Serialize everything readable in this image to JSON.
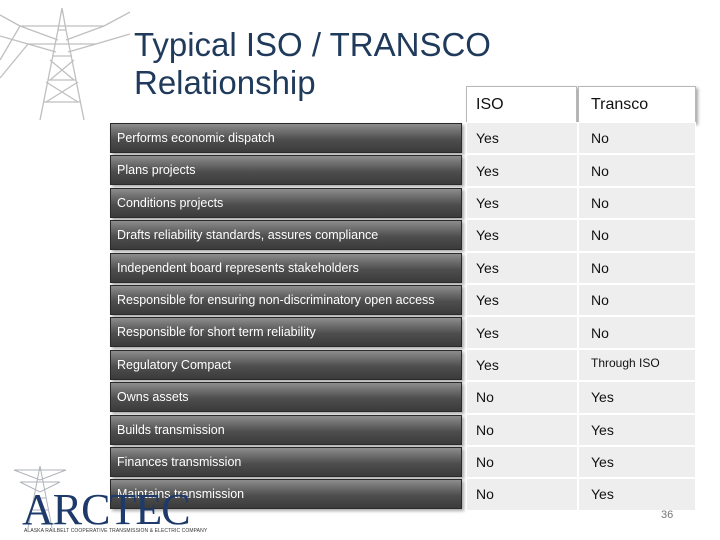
{
  "slide": {
    "title_line1": "Typical ISO / TRANSCO",
    "title_line2": "Relationship",
    "page_number": "36"
  },
  "logo": {
    "text": "ARCTEC",
    "tagline": "ALASKA RAILBELT COOPERATIVE TRANSMISSION & ELECTRIC COMPANY"
  },
  "table": {
    "headers": {
      "iso": "ISO",
      "transco": "Transco"
    },
    "rows": [
      {
        "label": "Performs economic dispatch",
        "iso": "Yes",
        "transco": "No"
      },
      {
        "label": "Plans projects",
        "iso": "Yes",
        "transco": "No"
      },
      {
        "label": "Conditions projects",
        "iso": "Yes",
        "transco": "No"
      },
      {
        "label": "Drafts reliability standards, assures compliance",
        "iso": "Yes",
        "transco": "No"
      },
      {
        "label": "Independent board represents stakeholders",
        "iso": "Yes",
        "transco": "No"
      },
      {
        "label": "Responsible for ensuring non-discriminatory open access",
        "iso": "Yes",
        "transco": "No"
      },
      {
        "label": "Responsible for short term reliability",
        "iso": "Yes",
        "transco": "No"
      },
      {
        "label": "Regulatory Compact",
        "iso": "Yes",
        "transco": "Through ISO"
      },
      {
        "label": "Owns assets",
        "iso": "No",
        "transco": "Yes"
      },
      {
        "label": "Builds transmission",
        "iso": "No",
        "transco": "Yes"
      },
      {
        "label": "Finances transmission",
        "iso": "No",
        "transco": "Yes"
      },
      {
        "label": "Maintains transmission",
        "iso": "No",
        "transco": "Yes"
      }
    ]
  },
  "colors": {
    "title": "#1f3a5a",
    "label_bg_top": "#8d8d8d",
    "label_bg_bottom": "#3b3b3b",
    "cell_bg": "#eeeeee"
  }
}
